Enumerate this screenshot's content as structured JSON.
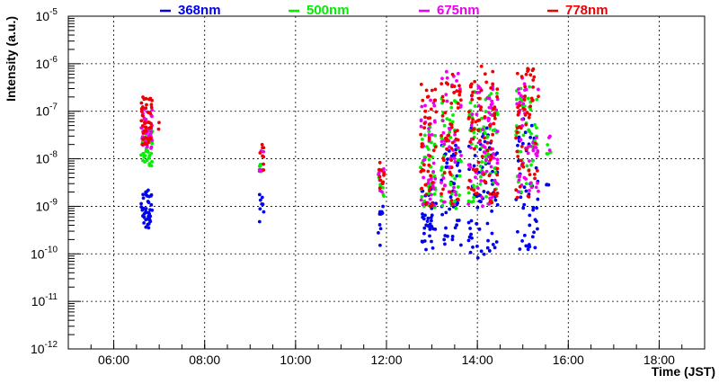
{
  "chart_data": {
    "type": "scatter",
    "xlabel": "Time (JST)",
    "ylabel": "Intensity (a.u.)",
    "x_unit": "hours (JST)",
    "xlim": [
      5.0,
      19.0
    ],
    "ylim": [
      1e-12,
      1e-05
    ],
    "y_scale": "log",
    "grid": true,
    "legend_position": "top",
    "x_ticks": [
      {
        "value": 6,
        "label": "06:00"
      },
      {
        "value": 8,
        "label": "08:00"
      },
      {
        "value": 10,
        "label": "10:00"
      },
      {
        "value": 12,
        "label": "12:00"
      },
      {
        "value": 14,
        "label": "14:00"
      },
      {
        "value": 16,
        "label": "16:00"
      },
      {
        "value": 18,
        "label": "18:00"
      }
    ],
    "y_ticks": [
      {
        "value": 1e-12,
        "base": "10",
        "exp": "-12"
      },
      {
        "value": 1e-11,
        "base": "10",
        "exp": "-11"
      },
      {
        "value": 1e-10,
        "base": "10",
        "exp": "-10"
      },
      {
        "value": 1e-09,
        "base": "10",
        "exp": "-9"
      },
      {
        "value": 1e-08,
        "base": "10",
        "exp": "-8"
      },
      {
        "value": 1e-07,
        "base": "10",
        "exp": "-7"
      },
      {
        "value": 1e-06,
        "base": "10",
        "exp": "-6"
      },
      {
        "value": 1e-05,
        "base": "10",
        "exp": "-5"
      }
    ],
    "series": [
      {
        "name": "368nm",
        "color": "#0000ee",
        "clusters": [
          {
            "x_range": [
              6.6,
              6.85
            ],
            "y_range": [
              3.5e-10,
              2.2e-09
            ],
            "n": 45
          },
          {
            "x_range": [
              9.2,
              9.3
            ],
            "y_range": [
              3e-10,
              2e-09
            ],
            "n": 8
          },
          {
            "x_range": [
              11.82,
              11.95
            ],
            "y_range": [
              1.5e-10,
              1e-09
            ],
            "n": 10
          },
          {
            "x_range": [
              12.75,
              13.1
            ],
            "y_range": [
              1.2e-10,
              3e-09
            ],
            "n": 40
          },
          {
            "x_range": [
              13.2,
              13.65
            ],
            "y_range": [
              1.3e-10,
              2e-08
            ],
            "n": 45
          },
          {
            "x_range": [
              13.8,
              14.45
            ],
            "y_range": [
              8e-11,
              5e-08
            ],
            "n": 75
          },
          {
            "x_range": [
              14.85,
              15.35
            ],
            "y_range": [
              1.2e-10,
              8e-08
            ],
            "n": 50
          },
          {
            "x_range": [
              15.5,
              15.6
            ],
            "y_range": [
              2e-09,
              3e-09
            ],
            "n": 3
          }
        ]
      },
      {
        "name": "500nm",
        "color": "#00ee00",
        "clusters": [
          {
            "x_range": [
              6.6,
              6.85
            ],
            "y_range": [
              7e-09,
              4e-08
            ],
            "n": 40
          },
          {
            "x_range": [
              9.2,
              9.3
            ],
            "y_range": [
              3e-09,
              1.5e-08
            ],
            "n": 5
          },
          {
            "x_range": [
              11.82,
              11.95
            ],
            "y_range": [
              1.5e-09,
              7e-09
            ],
            "n": 8
          },
          {
            "x_range": [
              12.75,
              13.1
            ],
            "y_range": [
              9e-10,
              6e-08
            ],
            "n": 40
          },
          {
            "x_range": [
              13.2,
              13.65
            ],
            "y_range": [
              9e-10,
              3e-07
            ],
            "n": 45
          },
          {
            "x_range": [
              13.8,
              14.45
            ],
            "y_range": [
              1e-09,
              3e-07
            ],
            "n": 70
          },
          {
            "x_range": [
              14.85,
              15.35
            ],
            "y_range": [
              2e-09,
              4e-07
            ],
            "n": 50
          },
          {
            "x_range": [
              15.5,
              15.62
            ],
            "y_range": [
              1e-08,
              3e-08
            ],
            "n": 4
          }
        ]
      },
      {
        "name": "675nm",
        "color": "#ee00ee",
        "clusters": [
          {
            "x_range": [
              6.6,
              6.85
            ],
            "y_range": [
              1.5e-08,
              1.2e-07
            ],
            "n": 35
          },
          {
            "x_range": [
              9.2,
              9.3
            ],
            "y_range": [
              5e-09,
              2e-08
            ],
            "n": 5
          },
          {
            "x_range": [
              11.82,
              11.95
            ],
            "y_range": [
              2e-09,
              8e-09
            ],
            "n": 8
          },
          {
            "x_range": [
              12.75,
              13.1
            ],
            "y_range": [
              1e-09,
              2e-07
            ],
            "n": 40
          },
          {
            "x_range": [
              13.2,
              13.65
            ],
            "y_range": [
              1e-09,
              7e-07
            ],
            "n": 45
          },
          {
            "x_range": [
              13.8,
              14.45
            ],
            "y_range": [
              1e-09,
              6e-07
            ],
            "n": 70
          },
          {
            "x_range": [
              14.85,
              15.35
            ],
            "y_range": [
              2e-09,
              6e-07
            ],
            "n": 50
          },
          {
            "x_range": [
              15.5,
              15.62
            ],
            "y_range": [
              1.5e-08,
              3e-08
            ],
            "n": 3
          }
        ]
      },
      {
        "name": "778nm",
        "color": "#ee0000",
        "clusters": [
          {
            "x_range": [
              6.6,
              6.85
            ],
            "y_range": [
              2e-08,
              2e-07
            ],
            "n": 45
          },
          {
            "x_range": [
              9.2,
              9.3
            ],
            "y_range": [
              5e-09,
              2.2e-08
            ],
            "n": 8
          },
          {
            "x_range": [
              11.82,
              11.95
            ],
            "y_range": [
              2e-09,
              9e-09
            ],
            "n": 10
          },
          {
            "x_range": [
              12.75,
              13.1
            ],
            "y_range": [
              9e-10,
              4e-07
            ],
            "n": 45
          },
          {
            "x_range": [
              13.2,
              13.65
            ],
            "y_range": [
              1e-09,
              9e-07
            ],
            "n": 50
          },
          {
            "x_range": [
              13.8,
              14.45
            ],
            "y_range": [
              1e-09,
              9e-07
            ],
            "n": 75
          },
          {
            "x_range": [
              14.85,
              15.35
            ],
            "y_range": [
              1.5e-09,
              8e-07
            ],
            "n": 55
          },
          {
            "x_range": [
              6.98,
              7.0
            ],
            "y_range": [
              4e-08,
              6e-08
            ],
            "n": 2
          }
        ]
      }
    ]
  }
}
